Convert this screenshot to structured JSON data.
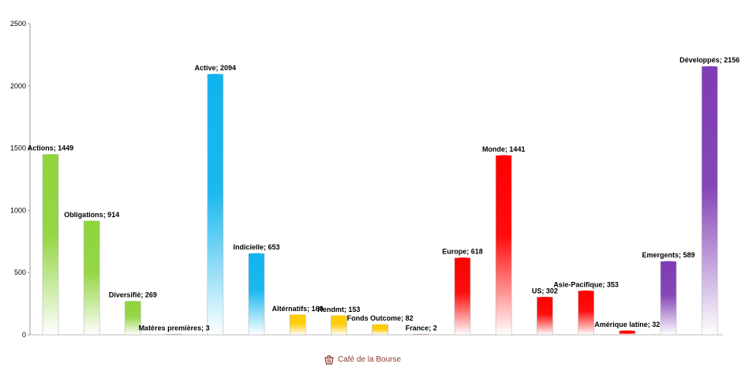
{
  "chart_data": {
    "type": "bar",
    "title": "",
    "xlabel": "",
    "ylabel": "",
    "ylim": [
      0,
      2500
    ],
    "yticks": [
      0,
      500,
      1000,
      1500,
      2000,
      2500
    ],
    "grid": false,
    "legend": "none",
    "bars": [
      {
        "label": "Actions",
        "value": 1449,
        "color": "#8fd43c"
      },
      {
        "label": "Obligations",
        "value": 914,
        "color": "#8fd43c"
      },
      {
        "label": "Diversifié",
        "value": 269,
        "color": "#8fd43c"
      },
      {
        "label": "Matères premières",
        "value": 3,
        "color": "#8fd43c"
      },
      {
        "label": "Active",
        "value": 2094,
        "color": "#10b4ee"
      },
      {
        "label": "Indicielle",
        "value": 653,
        "color": "#10b4ee"
      },
      {
        "label": "Altérnatifs",
        "value": 160,
        "color": "#ffcc00"
      },
      {
        "label": "Rendmt",
        "value": 153,
        "color": "#ffcc00"
      },
      {
        "label": "Fonds Outcome",
        "value": 82,
        "color": "#ffcc00"
      },
      {
        "label": "France",
        "value": 2,
        "color": "#ff0000"
      },
      {
        "label": "Europe",
        "value": 618,
        "color": "#ff0000"
      },
      {
        "label": "Monde",
        "value": 1441,
        "color": "#ff0000"
      },
      {
        "label": "US",
        "value": 302,
        "color": "#ff0000"
      },
      {
        "label": "Asie-Pacifique",
        "value": 353,
        "color": "#ff0000"
      },
      {
        "label": "Amérique latine",
        "value": 32,
        "color": "#ff0000"
      },
      {
        "label": "Emergents",
        "value": 589,
        "color": "#7f3cb4"
      },
      {
        "label": "Développés",
        "value": 2156,
        "color": "#7f3cb4"
      }
    ],
    "label_separator": "; "
  },
  "credit": {
    "text": "Café de la Bourse",
    "icon": "basket-icon",
    "color": "#8a3b2c"
  }
}
